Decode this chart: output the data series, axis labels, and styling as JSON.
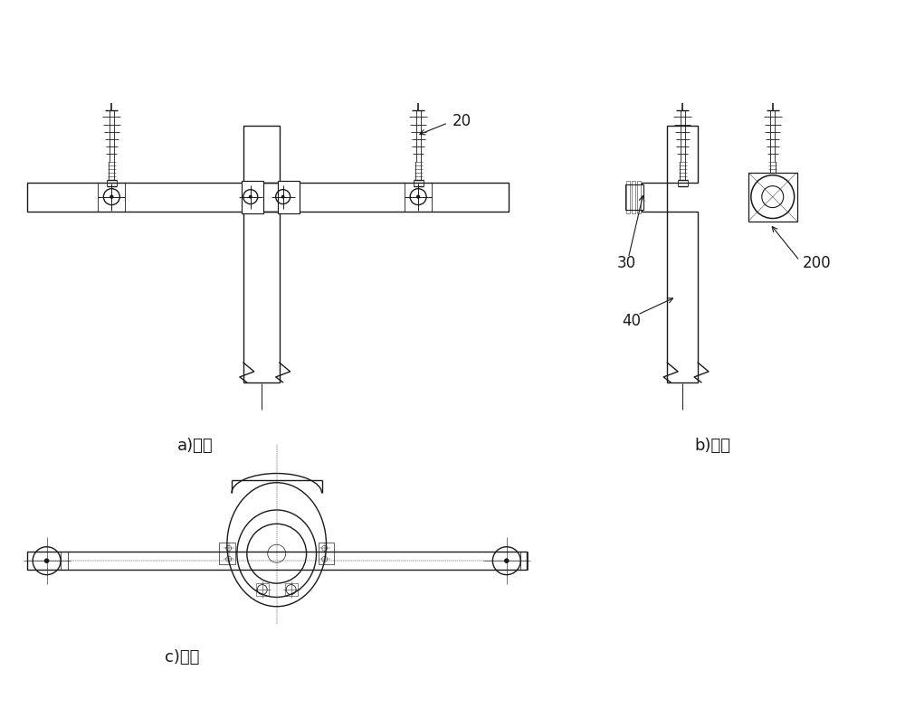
{
  "bg_color": "#ffffff",
  "line_color": "#1a1a1a",
  "lw": 1.0,
  "tlw": 0.6,
  "label_20": "20",
  "label_30": "30",
  "label_40": "40",
  "label_200": "200",
  "label_a": "a)正视",
  "label_b": "b)侧视",
  "label_c": "c)俦视",
  "font_size": 13,
  "annot_size": 12
}
